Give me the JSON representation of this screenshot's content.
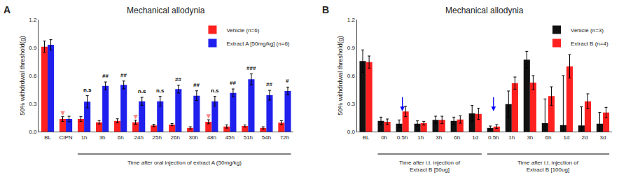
{
  "chart_data": [
    {
      "type": "bar",
      "panel_label": "A",
      "title": "Mechanical allodynia",
      "ylabel": "50% withdrdwal threshold(g)",
      "categories": [
        "BL",
        "CIPN",
        "1h",
        "3h",
        "6h",
        "24h",
        "25h",
        "26h",
        "30h",
        "48h",
        "45h",
        "51h",
        "54h",
        "72h"
      ],
      "series": [
        {
          "name": "Vehicle (n=6)",
          "color": "#FF2020",
          "values": [
            0.91,
            0.135,
            0.135,
            0.1,
            0.115,
            0.1,
            0.065,
            0.075,
            0.04,
            0.105,
            0.055,
            0.06,
            0.04,
            0.095
          ],
          "errors": [
            0.06,
            0.025,
            0.025,
            0.018,
            0.022,
            0.022,
            0.012,
            0.012,
            0.012,
            0.022,
            0.018,
            0.012,
            0.012,
            0.022
          ]
        },
        {
          "name": "Extract A [50mg/kg] (n=6)",
          "color": "#2020EE",
          "values": [
            0.93,
            0.135,
            0.32,
            0.49,
            0.5,
            0.325,
            0.325,
            0.455,
            0.385,
            0.325,
            0.415,
            0.56,
            0.39,
            0.435
          ],
          "errors": [
            0.055,
            0.03,
            0.065,
            0.042,
            0.042,
            0.042,
            0.052,
            0.042,
            0.052,
            0.052,
            0.042,
            0.058,
            0.052,
            0.042
          ]
        }
      ],
      "ylim": [
        0,
        1.2
      ],
      "yticks": [
        {
          "value": 0,
          "label": "0.0"
        },
        0.3,
        0.6,
        0.9,
        1.2
      ],
      "grid": false,
      "legend": "upper right",
      "annotations": [
        {
          "x": 2,
          "series": "Extract A [50mg/kg] (n=6)",
          "text": "n.s"
        },
        {
          "x": 3,
          "series": "Extract A [50mg/kg] (n=6)",
          "text": "##"
        },
        {
          "x": 4,
          "series": "Extract A [50mg/kg] (n=6)",
          "text": "##"
        },
        {
          "x": 5,
          "series": "Extract A [50mg/kg] (n=6)",
          "text": "n.s"
        },
        {
          "x": 6,
          "series": "Extract A [50mg/kg] (n=6)",
          "text": "n.s"
        },
        {
          "x": 7,
          "series": "Extract A [50mg/kg] (n=6)",
          "text": "##"
        },
        {
          "x": 8,
          "series": "Extract A [50mg/kg] (n=6)",
          "text": "##"
        },
        {
          "x": 9,
          "series": "Extract A [50mg/kg] (n=6)",
          "text": "n.s"
        },
        {
          "x": 10,
          "series": "Extract A [50mg/kg] (n=6)",
          "text": "##"
        },
        {
          "x": 11,
          "series": "Extract A [50mg/kg] (n=6)",
          "text": "###"
        },
        {
          "x": 12,
          "series": "Extract A [50mg/kg] (n=6)",
          "text": "##"
        },
        {
          "x": 13,
          "series": "Extract A [50mg/kg] (n=6)",
          "text": "#"
        }
      ],
      "arrows": [
        {
          "x": 1,
          "series": "Vehicle (n=6)",
          "color": "#FF8888"
        },
        {
          "x": 5,
          "series": "Vehicle (n=6)",
          "color": "#FF8888"
        },
        {
          "x": 9,
          "series": "Vehicle (n=6)",
          "color": "#FF8888"
        }
      ],
      "group_labels": [
        {
          "text": "Time after oral injection of extract A (50mg/kg)",
          "from": 2,
          "to": 13
        }
      ]
    },
    {
      "type": "bar",
      "panel_label": "B",
      "title": "Mechanical allodynia",
      "ylabel": "50% withdrdwal threshold(g)",
      "categories": [
        "BL",
        "0h",
        "0.5h",
        "1h",
        "3h",
        "6h",
        "1d",
        "0.5h",
        "1h",
        "3h",
        "6h",
        "1d",
        "2d",
        "3d"
      ],
      "series": [
        {
          "name": "Vehicle (n=3)",
          "color": "#111111",
          "values": [
            0.755,
            0.115,
            0.085,
            0.085,
            0.125,
            0.115,
            0.195,
            0.04,
            0.295,
            0.77,
            0.09,
            0.07,
            0.065,
            0.085
          ],
          "errors": [
            0.12,
            0.04,
            0.04,
            0.03,
            0.04,
            0.04,
            0.085,
            0.02,
            0.14,
            0.09,
            0.26,
            0.53,
            0.2,
            0.12
          ]
        },
        {
          "name": "Extract B (n=4)",
          "color": "#FF2020",
          "values": [
            0.745,
            0.105,
            0.215,
            0.09,
            0.125,
            0.13,
            0.19,
            0.055,
            0.52,
            0.525,
            0.38,
            0.7,
            0.325,
            0.205
          ],
          "errors": [
            0.065,
            0.03,
            0.055,
            0.02,
            0.04,
            0.04,
            0.06,
            0.02,
            0.065,
            0.075,
            0.1,
            0.125,
            0.08,
            0.055
          ]
        }
      ],
      "ylim": [
        0,
        1.2
      ],
      "yticks": [
        {
          "value": 0,
          "label": "0.0"
        },
        0.3,
        0.6,
        0.9,
        1.2
      ],
      "grid": false,
      "legend": "upper right",
      "arrows": [
        {
          "x": 2,
          "from": 0.38,
          "to": 0.22,
          "color": "blue"
        },
        {
          "x": 7,
          "from": 0.38,
          "to": 0.22,
          "color": "blue"
        }
      ],
      "group_labels": [
        {
          "text": "Time after i.t. injection of\nExtract B [50ug]",
          "from": 1,
          "to": 6
        },
        {
          "text": "Time after i.t. injection of\nExtract B [100ug]",
          "from": 7,
          "to": 13
        }
      ]
    }
  ]
}
